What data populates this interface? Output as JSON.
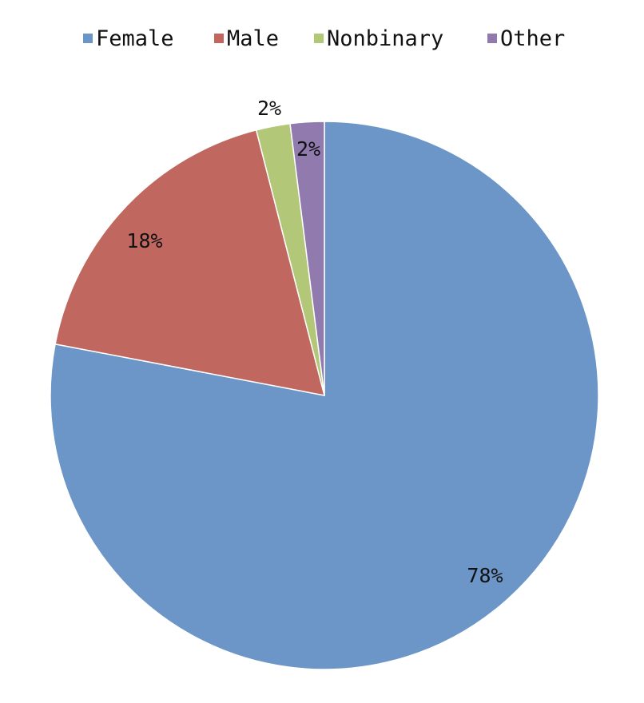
{
  "chart_data": {
    "type": "pie",
    "title": "",
    "legend_position": "top",
    "slices": [
      {
        "label": "Female",
        "value": 78,
        "value_label": "78%",
        "color": "#6b96c7"
      },
      {
        "label": "Male",
        "value": 18,
        "value_label": "18%",
        "color": "#c0675f"
      },
      {
        "label": "Nonbinary",
        "value": 2,
        "value_label": "2%",
        "color": "#b2c878"
      },
      {
        "label": "Other",
        "value": 2,
        "value_label": "2%",
        "color": "#917aae"
      }
    ],
    "start_angle": "12 o'clock",
    "direction": "clockwise"
  }
}
